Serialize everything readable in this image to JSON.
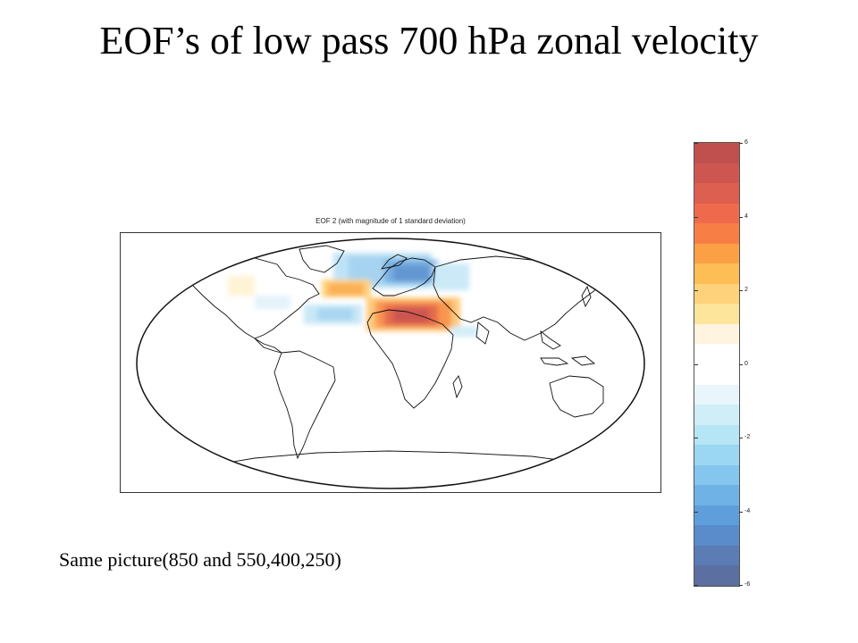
{
  "slide": {
    "title": "EOF’s of low pass 700 hPa zonal velocity",
    "caption": "Same picture(850 and 550,400,250)"
  },
  "map": {
    "title": "EOF 2  (with magnitude of 1 standard deviation)",
    "projection": "robinson-like world map",
    "anomalies": [
      {
        "region": "Northern Europe / Scandinavia",
        "sign": "negative",
        "max_abs": 4
      },
      {
        "region": "Mediterranean / North Africa",
        "sign": "positive",
        "max_abs": 6
      },
      {
        "region": "North Atlantic (near 40N)",
        "sign": "positive",
        "max_abs": 3
      },
      {
        "region": "Subtropical North Atlantic",
        "sign": "negative",
        "max_abs": 2
      }
    ]
  },
  "colorbar": {
    "min": -6,
    "max": 6,
    "tick_labels": [
      "6",
      "4",
      "2",
      "0",
      "-2",
      "-4",
      "-6"
    ],
    "colors": [
      "#c0504d",
      "#cd5750",
      "#dd5f4f",
      "#ef6a4c",
      "#f77f45",
      "#fba045",
      "#fdbe55",
      "#fed27a",
      "#fee59c",
      "#fff4df",
      "#ffffff",
      "#ffffff",
      "#e8f6fb",
      "#cfeef8",
      "#b6e5f5",
      "#9bd7f2",
      "#85c6ee",
      "#6fb3e6",
      "#5e9fdb",
      "#5a8bca",
      "#5b7cb5",
      "#5b6fa0"
    ]
  }
}
